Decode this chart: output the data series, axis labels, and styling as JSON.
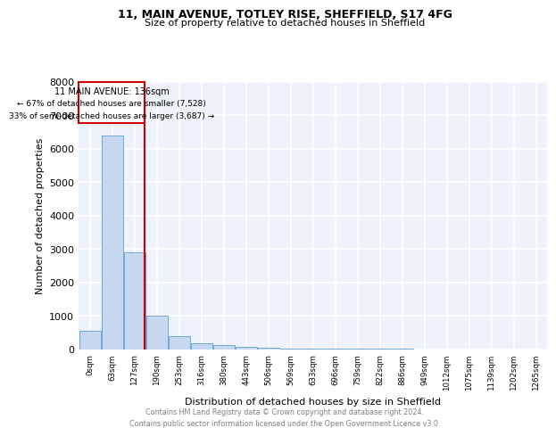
{
  "title1": "11, MAIN AVENUE, TOTLEY RISE, SHEFFIELD, S17 4FG",
  "title2": "Size of property relative to detached houses in Sheffield",
  "xlabel": "Distribution of detached houses by size in Sheffield",
  "ylabel": "Number of detached properties",
  "bar_labels": [
    "0sqm",
    "63sqm",
    "127sqm",
    "190sqm",
    "253sqm",
    "316sqm",
    "380sqm",
    "443sqm",
    "506sqm",
    "569sqm",
    "633sqm",
    "696sqm",
    "759sqm",
    "822sqm",
    "886sqm",
    "949sqm",
    "1012sqm",
    "1075sqm",
    "1139sqm",
    "1202sqm",
    "1265sqm"
  ],
  "bar_values": [
    550,
    6400,
    2900,
    1000,
    380,
    170,
    120,
    80,
    30,
    10,
    5,
    3,
    2,
    1,
    1,
    0,
    0,
    0,
    0,
    0,
    0
  ],
  "bar_color": "#c5d8f0",
  "bar_edge_color": "#6fa8d4",
  "vline_x_idx": 2,
  "vline_color": "#cc0000",
  "annotation_title": "11 MAIN AVENUE: 136sqm",
  "annotation_line1": "← 67% of detached houses are smaller (7,528)",
  "annotation_line2": "33% of semi-detached houses are larger (3,687) →",
  "annotation_box_color": "#cc0000",
  "ylim": [
    0,
    8000
  ],
  "yticks": [
    0,
    1000,
    2000,
    3000,
    4000,
    5000,
    6000,
    7000,
    8000
  ],
  "footer_line1": "Contains HM Land Registry data © Crown copyright and database right 2024.",
  "footer_line2": "Contains public sector information licensed under the Open Government Licence v3.0.",
  "background_color": "#eef2fb",
  "grid_color": "#ffffff"
}
